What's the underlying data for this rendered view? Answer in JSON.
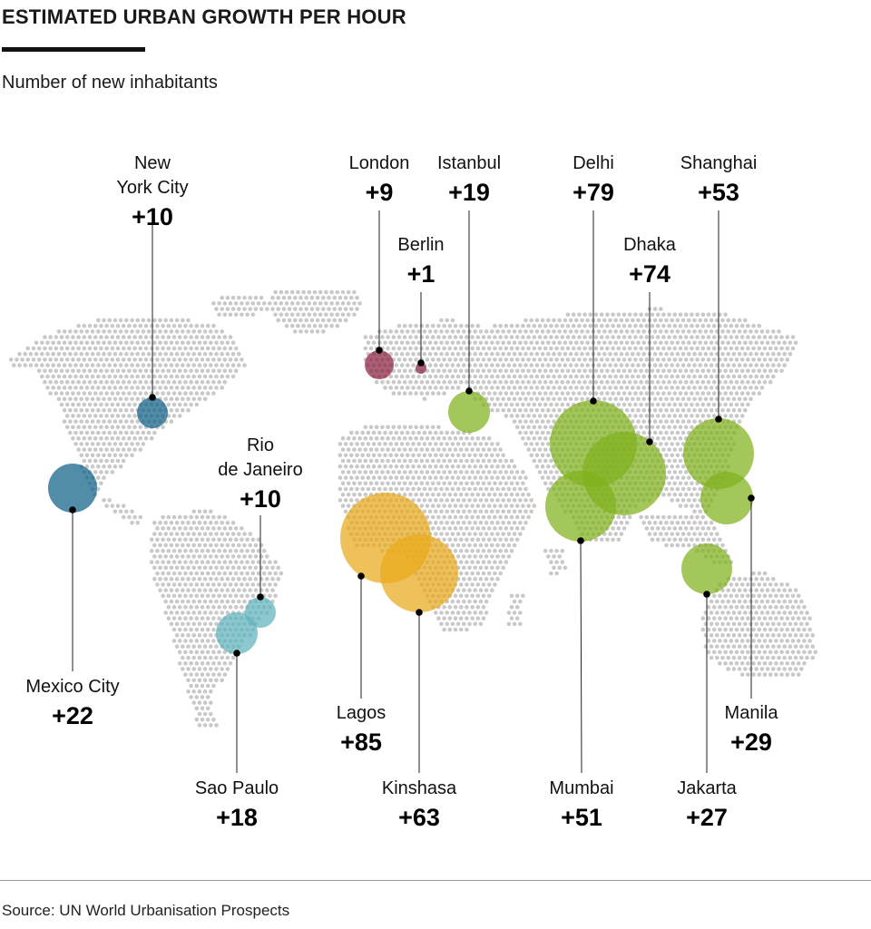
{
  "title": "ESTIMATED URBAN GROWTH PER HOUR",
  "subtitle": "Number of new inhabitants",
  "source": "Source: UN World Urbanisation Prospects",
  "colors": {
    "north_america": "#0e5f86",
    "south_america": "#5fb3bd",
    "europe": "#8c2240",
    "africa": "#e9a91b",
    "asia": "#7fb11c",
    "land_dots": "#c9c9c9"
  },
  "cities": [
    {
      "name": "New\nYork City",
      "value": "+10",
      "region": "north_america"
    },
    {
      "name": "Mexico City",
      "value": "+22",
      "region": "north_america"
    },
    {
      "name": "Rio\nde Janeiro",
      "value": "+10",
      "region": "south_america"
    },
    {
      "name": "Sao Paulo",
      "value": "+18",
      "region": "south_america"
    },
    {
      "name": "London",
      "value": "+9",
      "region": "europe"
    },
    {
      "name": "Berlin",
      "value": "+1",
      "region": "europe"
    },
    {
      "name": "Istanbul",
      "value": "+19",
      "region": "asia"
    },
    {
      "name": "Lagos",
      "value": "+85",
      "region": "africa"
    },
    {
      "name": "Kinshasa",
      "value": "+63",
      "region": "africa"
    },
    {
      "name": "Delhi",
      "value": "+79",
      "region": "asia"
    },
    {
      "name": "Dhaka",
      "value": "+74",
      "region": "asia"
    },
    {
      "name": "Mumbai",
      "value": "+51",
      "region": "asia"
    },
    {
      "name": "Shanghai",
      "value": "+53",
      "region": "asia"
    },
    {
      "name": "Manila",
      "value": "+29",
      "region": "asia"
    },
    {
      "name": "Jakarta",
      "value": "+27",
      "region": "asia"
    }
  ]
}
